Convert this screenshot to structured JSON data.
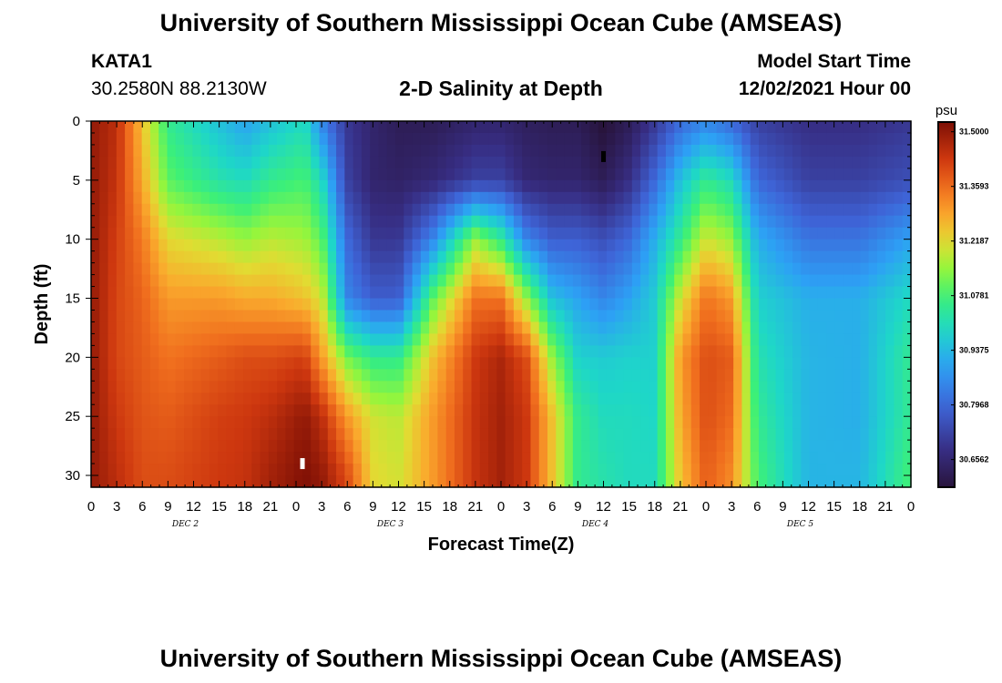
{
  "header": {
    "title": "University of Southern Mississippi Ocean Cube (AMSEAS)",
    "station": "KATA1",
    "coords": "30.2580N  88.2130W",
    "subtitle": "2-D Salinity at Depth",
    "model_start_label": "Model Start Time",
    "model_start_value": "12/02/2021 Hour 00"
  },
  "footer": {
    "title": "University of Southern Mississippi Ocean Cube (AMSEAS)"
  },
  "chart_data": {
    "type": "heatmap",
    "title": "2-D Salinity at Depth",
    "xlabel": "Forecast Time(Z)",
    "ylabel": "Depth (ft)",
    "x_hours": [
      0,
      96
    ],
    "x_tick_labels": [
      "0",
      "3",
      "6",
      "9",
      "12",
      "15",
      "18",
      "21",
      "0",
      "3",
      "6",
      "9",
      "12",
      "15",
      "18",
      "21",
      "0",
      "3",
      "6",
      "9",
      "12",
      "15",
      "18",
      "21",
      "0",
      "3",
      "6",
      "9",
      "12",
      "15",
      "18",
      "21",
      "0"
    ],
    "day_labels": [
      "DEC 2",
      "DEC 3",
      "DEC 4",
      "DEC 5"
    ],
    "ylim": [
      0,
      31
    ],
    "y_ticks": [
      0,
      5,
      10,
      15,
      20,
      25,
      30
    ],
    "colorbar": {
      "units": "psu",
      "range": [
        30.585,
        31.525
      ],
      "tick_values": [
        31.5,
        31.3593,
        31.2187,
        31.0781,
        30.9375,
        30.7968,
        30.6562
      ],
      "tick_labels": [
        "31.5000",
        "31.3593",
        "31.2187",
        "31.0781",
        "30.9375",
        "30.7968",
        "30.6562"
      ]
    },
    "markers": [
      {
        "hour": 24.75,
        "depth": 29,
        "color": "#ffffff"
      },
      {
        "hour": 60,
        "depth": 3,
        "color": "#000000"
      }
    ],
    "profile_times_h": [
      0,
      3,
      6,
      9,
      15,
      18,
      21,
      25,
      27,
      30,
      33,
      36,
      40,
      45,
      48,
      51,
      54,
      57,
      60,
      63,
      66,
      69,
      72,
      75,
      78,
      84,
      90,
      96
    ],
    "profile_depths_ft": [
      0,
      5,
      10,
      15,
      20,
      25,
      30
    ],
    "profiles_psu": [
      [
        31.5,
        31.5,
        31.5,
        31.5,
        31.5,
        31.5,
        31.5
      ],
      [
        31.45,
        31.44,
        31.42,
        31.41,
        31.41,
        31.43,
        31.45
      ],
      [
        31.25,
        31.28,
        31.34,
        31.37,
        31.38,
        31.39,
        31.4
      ],
      [
        31.05,
        31.1,
        31.22,
        31.3,
        31.35,
        31.38,
        31.4
      ],
      [
        30.95,
        31.02,
        31.18,
        31.3,
        31.38,
        31.42,
        31.43
      ],
      [
        30.9,
        31.0,
        31.15,
        31.28,
        31.4,
        31.43,
        31.44
      ],
      [
        30.95,
        31.05,
        31.18,
        31.28,
        31.4,
        31.45,
        31.48
      ],
      [
        31.0,
        31.08,
        31.16,
        31.25,
        31.42,
        31.5,
        31.52
      ],
      [
        30.85,
        31.0,
        31.1,
        31.2,
        31.3,
        31.45,
        31.5
      ],
      [
        30.7,
        30.72,
        30.8,
        30.85,
        31.12,
        31.3,
        31.4
      ],
      [
        30.65,
        30.65,
        30.7,
        30.78,
        31.05,
        31.2,
        31.22
      ],
      [
        30.62,
        30.64,
        30.7,
        30.78,
        31.05,
        31.18,
        31.2
      ],
      [
        30.62,
        30.66,
        30.85,
        31.1,
        31.25,
        31.3,
        31.3
      ],
      [
        30.65,
        30.72,
        31.15,
        31.35,
        31.43,
        31.44,
        31.44
      ],
      [
        30.65,
        30.72,
        31.05,
        31.35,
        31.47,
        31.48,
        31.48
      ],
      [
        30.63,
        30.66,
        30.85,
        31.15,
        31.4,
        31.43,
        31.43
      ],
      [
        30.62,
        30.65,
        30.78,
        30.95,
        31.15,
        31.25,
        31.25
      ],
      [
        30.62,
        30.65,
        30.78,
        30.9,
        30.98,
        31.05,
        31.05
      ],
      [
        30.58,
        30.62,
        30.75,
        30.85,
        30.97,
        31.0,
        31.02
      ],
      [
        30.62,
        30.68,
        30.8,
        30.9,
        30.98,
        31.0,
        31.0
      ],
      [
        30.7,
        30.8,
        30.92,
        30.97,
        30.98,
        30.99,
        31.0
      ],
      [
        30.8,
        30.95,
        31.05,
        31.2,
        31.3,
        31.28,
        31.25
      ],
      [
        30.85,
        31.05,
        31.2,
        31.35,
        31.4,
        31.4,
        31.38
      ],
      [
        30.8,
        31.0,
        31.15,
        31.3,
        31.38,
        31.36,
        31.32
      ],
      [
        30.72,
        30.8,
        30.92,
        30.98,
        31.02,
        31.05,
        31.08
      ],
      [
        30.68,
        30.72,
        30.82,
        30.92,
        30.93,
        30.93,
        30.93
      ],
      [
        30.68,
        30.72,
        30.82,
        30.92,
        30.92,
        30.92,
        30.93
      ],
      [
        30.7,
        30.75,
        30.9,
        31.0,
        31.05,
        31.05,
        31.08
      ]
    ]
  }
}
